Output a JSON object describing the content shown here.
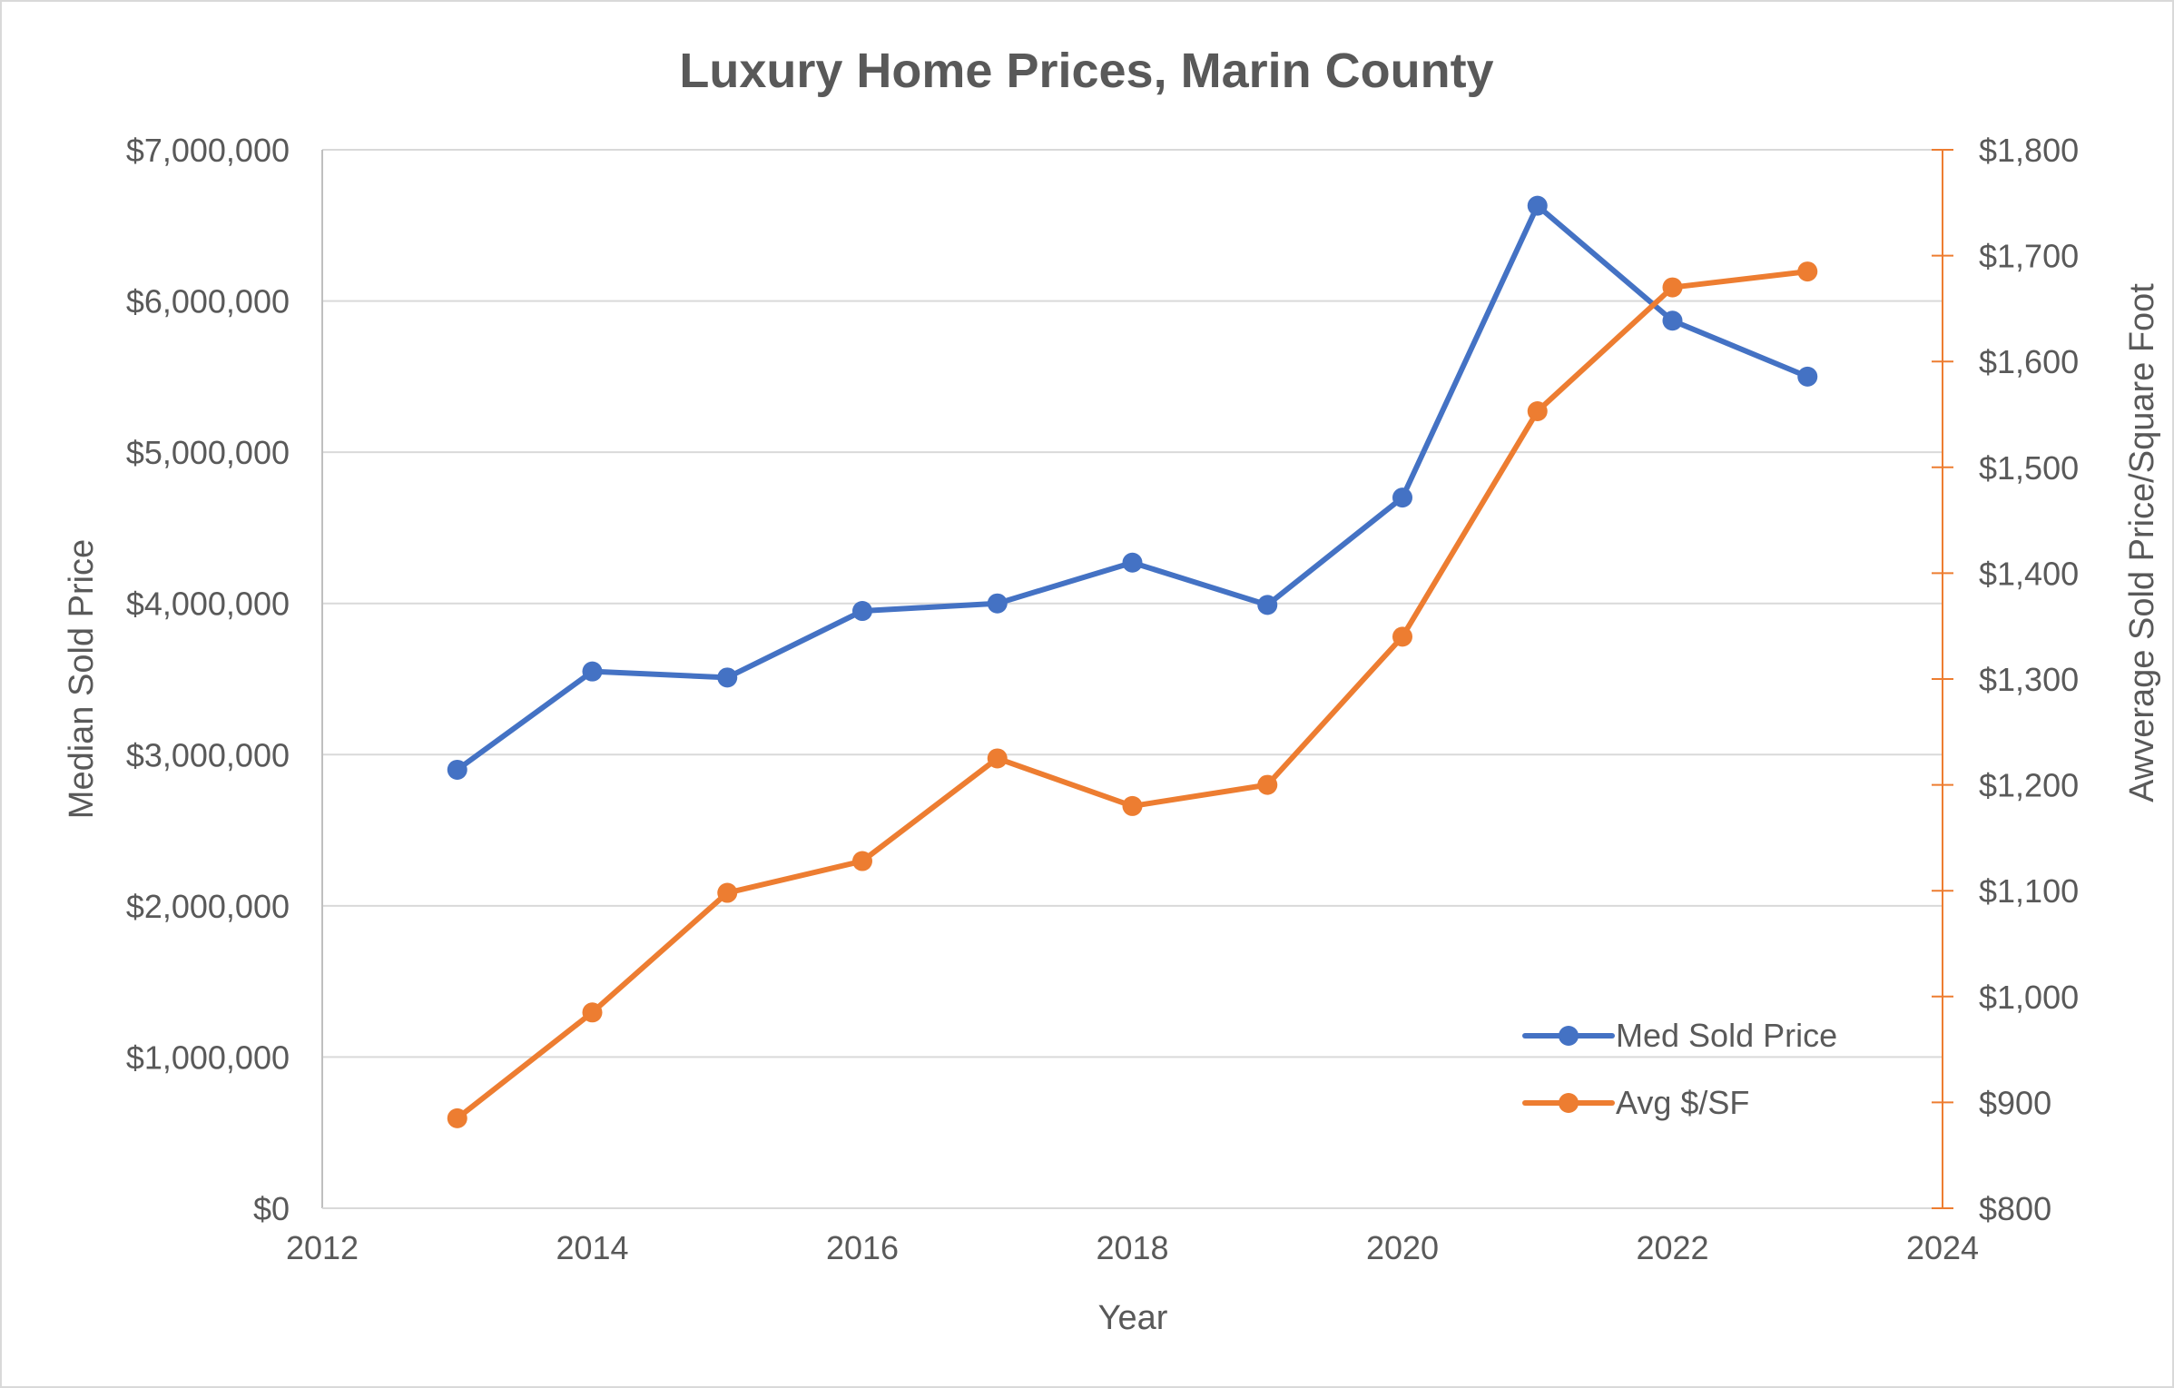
{
  "chart_data": {
    "type": "line",
    "title": "Luxury Home Prices, Marin County",
    "xlabel": "Year",
    "ylabel": "Median Sold Price",
    "y2label": "Awverage Sold Price/Square Foot",
    "xlim": [
      2012,
      2024
    ],
    "ylim": [
      0,
      7000000
    ],
    "y2lim": [
      800,
      1800
    ],
    "x_ticks": [
      "2012",
      "2014",
      "2016",
      "2018",
      "2020",
      "2022",
      "2024"
    ],
    "y_ticks": [
      "$0",
      "$1,000,000",
      "$2,000,000",
      "$3,000,000",
      "$4,000,000",
      "$5,000,000",
      "$6,000,000",
      "$7,000,000"
    ],
    "y2_ticks": [
      "$800",
      "$900",
      "$1,000",
      "$1,100",
      "$1,200",
      "$1,300",
      "$1,400",
      "$1,500",
      "$1,600",
      "$1,700",
      "$1,800"
    ],
    "grid": true,
    "legend_position": "bottom-right",
    "x": [
      2013,
      2014,
      2015,
      2016,
      2017,
      2018,
      2019,
      2020,
      2021,
      2022,
      2023
    ],
    "series": [
      {
        "name": "Med Sold Price",
        "axis": "left",
        "color": "#4472c4",
        "values": [
          2900000,
          3550000,
          3510000,
          3950000,
          4000000,
          4270000,
          3990000,
          4700000,
          6630000,
          5870000,
          5500000
        ]
      },
      {
        "name": "Avg $/SF",
        "axis": "right",
        "color": "#ed7d31",
        "values": [
          885,
          985,
          1098,
          1128,
          1225,
          1180,
          1200,
          1340,
          1553,
          1670,
          1685
        ]
      }
    ]
  }
}
